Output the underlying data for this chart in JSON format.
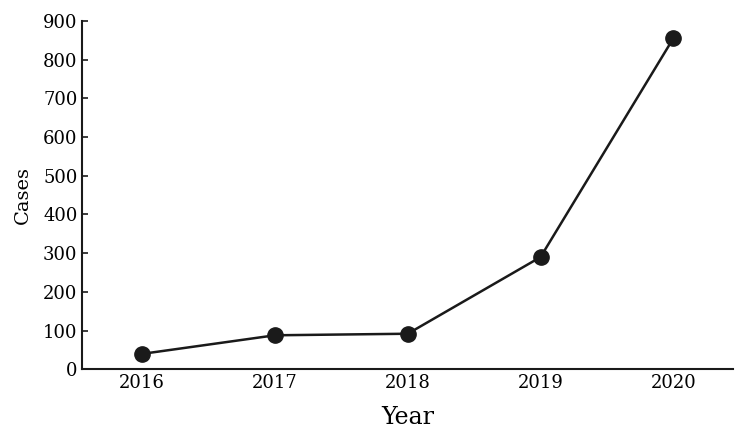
{
  "years": [
    2016,
    2017,
    2018,
    2019,
    2020
  ],
  "cases": [
    40,
    88,
    92,
    290,
    855
  ],
  "line_color": "#1a1a1a",
  "marker_color": "#1a1a1a",
  "marker_size": 11,
  "line_width": 1.8,
  "xlabel": "Year",
  "ylabel": "Cases",
  "xlabel_fontsize": 17,
  "ylabel_fontsize": 14,
  "tick_fontsize": 13,
  "ylim": [
    0,
    900
  ],
  "yticks": [
    0,
    100,
    200,
    300,
    400,
    500,
    600,
    700,
    800,
    900
  ],
  "xticks": [
    2016,
    2017,
    2018,
    2019,
    2020
  ],
  "background_color": "#ffffff",
  "font_family": "serif"
}
